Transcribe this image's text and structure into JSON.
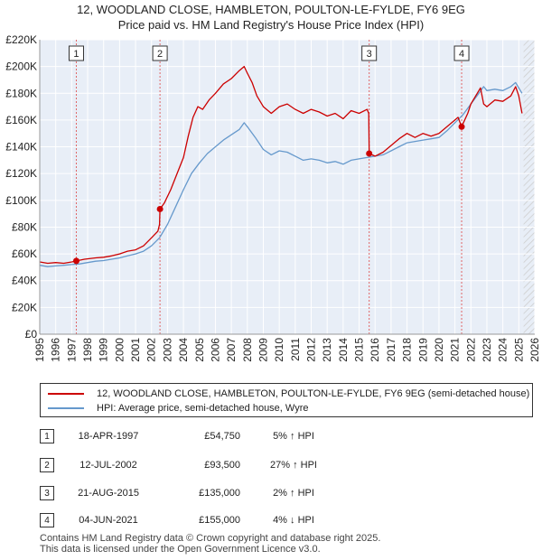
{
  "title_line1": "12, WOODLAND CLOSE, HAMBLETON, POULTON-LE-FYLDE, FY6 9EG",
  "title_line2": "Price paid vs. HM Land Registry's House Price Index (HPI)",
  "chart_data": {
    "type": "line",
    "xlim": [
      1995,
      2026
    ],
    "ylim": [
      0,
      220000
    ],
    "ytick_labels": [
      "£0",
      "£20K",
      "£40K",
      "£60K",
      "£80K",
      "£100K",
      "£120K",
      "£140K",
      "£160K",
      "£180K",
      "£200K",
      "£220K"
    ],
    "ytick_values": [
      0,
      20000,
      40000,
      60000,
      80000,
      100000,
      120000,
      140000,
      160000,
      180000,
      200000,
      220000
    ],
    "xtick_labels": [
      "1995",
      "1996",
      "1997",
      "1998",
      "1999",
      "2000",
      "2001",
      "2002",
      "2003",
      "2004",
      "2005",
      "2006",
      "2007",
      "2008",
      "2009",
      "2010",
      "2011",
      "2012",
      "2013",
      "2014",
      "2015",
      "2016",
      "2017",
      "2018",
      "2019",
      "2020",
      "2021",
      "2022",
      "2023",
      "2024",
      "2025",
      "2026"
    ],
    "series": [
      {
        "name": "12, WOODLAND CLOSE, HAMBLETON, POULTON-LE-FYLDE, FY6 9EG (semi-detached house)",
        "color": "#cc0000",
        "points": [
          [
            1995.0,
            54000
          ],
          [
            1995.5,
            53000
          ],
          [
            1996.0,
            53500
          ],
          [
            1996.5,
            53000
          ],
          [
            1997.0,
            54000
          ],
          [
            1997.29,
            54750
          ],
          [
            1997.8,
            56000
          ],
          [
            1998.5,
            57000
          ],
          [
            1999.0,
            57500
          ],
          [
            1999.5,
            58500
          ],
          [
            2000.0,
            60000
          ],
          [
            2000.5,
            62000
          ],
          [
            2001.0,
            63000
          ],
          [
            2001.5,
            66000
          ],
          [
            2002.0,
            72000
          ],
          [
            2002.4,
            77000
          ],
          [
            2002.5,
            82000
          ],
          [
            2002.53,
            93500
          ],
          [
            2002.8,
            98000
          ],
          [
            2003.2,
            108000
          ],
          [
            2003.6,
            120000
          ],
          [
            2004.0,
            132000
          ],
          [
            2004.3,
            148000
          ],
          [
            2004.6,
            162000
          ],
          [
            2004.9,
            170000
          ],
          [
            2005.2,
            168000
          ],
          [
            2005.6,
            175000
          ],
          [
            2006.0,
            180000
          ],
          [
            2006.5,
            187000
          ],
          [
            2007.0,
            191000
          ],
          [
            2007.5,
            197000
          ],
          [
            2007.8,
            200000
          ],
          [
            2008.0,
            195000
          ],
          [
            2008.3,
            188000
          ],
          [
            2008.6,
            178000
          ],
          [
            2009.0,
            170000
          ],
          [
            2009.5,
            165000
          ],
          [
            2010.0,
            170000
          ],
          [
            2010.5,
            172000
          ],
          [
            2011.0,
            168000
          ],
          [
            2011.5,
            165000
          ],
          [
            2012.0,
            168000
          ],
          [
            2012.5,
            166000
          ],
          [
            2013.0,
            163000
          ],
          [
            2013.5,
            165000
          ],
          [
            2014.0,
            161000
          ],
          [
            2014.5,
            167000
          ],
          [
            2015.0,
            165000
          ],
          [
            2015.5,
            168000
          ],
          [
            2015.6,
            165000
          ],
          [
            2015.63,
            135000
          ],
          [
            2016.0,
            133000
          ],
          [
            2016.5,
            136000
          ],
          [
            2017.0,
            141000
          ],
          [
            2017.5,
            146000
          ],
          [
            2018.0,
            150000
          ],
          [
            2018.5,
            147000
          ],
          [
            2019.0,
            150000
          ],
          [
            2019.5,
            148000
          ],
          [
            2020.0,
            150000
          ],
          [
            2020.5,
            155000
          ],
          [
            2020.9,
            159000
          ],
          [
            2021.2,
            162000
          ],
          [
            2021.42,
            155000
          ],
          [
            2021.8,
            165000
          ],
          [
            2022.0,
            172000
          ],
          [
            2022.3,
            178000
          ],
          [
            2022.6,
            184000
          ],
          [
            2022.8,
            172000
          ],
          [
            2023.0,
            170000
          ],
          [
            2023.5,
            175000
          ],
          [
            2024.0,
            174000
          ],
          [
            2024.5,
            178000
          ],
          [
            2024.8,
            185000
          ],
          [
            2025.0,
            178000
          ],
          [
            2025.2,
            165000
          ]
        ]
      },
      {
        "name": "HPI: Average price, semi-detached house, Wyre",
        "color": "#6699cc",
        "points": [
          [
            1995.0,
            51500
          ],
          [
            1995.5,
            50500
          ],
          [
            1996.0,
            51000
          ],
          [
            1996.5,
            51500
          ],
          [
            1997.0,
            52000
          ],
          [
            1997.5,
            52500
          ],
          [
            1998.0,
            53500
          ],
          [
            1998.5,
            54500
          ],
          [
            1999.0,
            55000
          ],
          [
            1999.5,
            56000
          ],
          [
            2000.0,
            57000
          ],
          [
            2000.5,
            58500
          ],
          [
            2001.0,
            60000
          ],
          [
            2001.5,
            62000
          ],
          [
            2002.0,
            66000
          ],
          [
            2002.5,
            72000
          ],
          [
            2003.0,
            82000
          ],
          [
            2003.5,
            95000
          ],
          [
            2004.0,
            108000
          ],
          [
            2004.5,
            120000
          ],
          [
            2005.0,
            128000
          ],
          [
            2005.5,
            135000
          ],
          [
            2006.0,
            140000
          ],
          [
            2006.5,
            145000
          ],
          [
            2007.0,
            149000
          ],
          [
            2007.5,
            153000
          ],
          [
            2007.8,
            158000
          ],
          [
            2008.0,
            155000
          ],
          [
            2008.5,
            147000
          ],
          [
            2009.0,
            138000
          ],
          [
            2009.5,
            134000
          ],
          [
            2010.0,
            137000
          ],
          [
            2010.5,
            136000
          ],
          [
            2011.0,
            133000
          ],
          [
            2011.5,
            130000
          ],
          [
            2012.0,
            131000
          ],
          [
            2012.5,
            130000
          ],
          [
            2013.0,
            128000
          ],
          [
            2013.5,
            129000
          ],
          [
            2014.0,
            127000
          ],
          [
            2014.5,
            130000
          ],
          [
            2015.0,
            131000
          ],
          [
            2015.5,
            132000
          ],
          [
            2016.0,
            133000
          ],
          [
            2016.5,
            134000
          ],
          [
            2017.0,
            137000
          ],
          [
            2017.5,
            140000
          ],
          [
            2018.0,
            143000
          ],
          [
            2018.5,
            144000
          ],
          [
            2019.0,
            145000
          ],
          [
            2019.5,
            146000
          ],
          [
            2020.0,
            147000
          ],
          [
            2020.5,
            152000
          ],
          [
            2021.0,
            158000
          ],
          [
            2021.5,
            164000
          ],
          [
            2022.0,
            172000
          ],
          [
            2022.5,
            180000
          ],
          [
            2022.8,
            185000
          ],
          [
            2023.0,
            182000
          ],
          [
            2023.5,
            183000
          ],
          [
            2024.0,
            182000
          ],
          [
            2024.5,
            185000
          ],
          [
            2024.8,
            188000
          ],
          [
            2025.0,
            184000
          ],
          [
            2025.2,
            180000
          ]
        ]
      }
    ],
    "sales": [
      {
        "label": "1",
        "x": 1997.29,
        "price": 54750
      },
      {
        "label": "2",
        "x": 2002.53,
        "price": 93500
      },
      {
        "label": "3",
        "x": 2015.63,
        "price": 135000
      },
      {
        "label": "4",
        "x": 2021.42,
        "price": 155000
      }
    ]
  },
  "legend": {
    "property_label": "12, WOODLAND CLOSE, HAMBLETON, POULTON-LE-FYLDE, FY6 9EG (semi-detached house)",
    "hpi_label": "HPI: Average price, semi-detached house, Wyre"
  },
  "transactions": [
    {
      "num": "1",
      "date": "18-APR-1997",
      "price": "£54,750",
      "hpi": "5% ↑ HPI"
    },
    {
      "num": "2",
      "date": "12-JUL-2002",
      "price": "£93,500",
      "hpi": "27% ↑ HPI"
    },
    {
      "num": "3",
      "date": "21-AUG-2015",
      "price": "£135,000",
      "hpi": "2% ↑ HPI"
    },
    {
      "num": "4",
      "date": "04-JUN-2021",
      "price": "£155,000",
      "hpi": "4% ↓ HPI"
    }
  ],
  "footer_line1": "Contains HM Land Registry data © Crown copyright and database right 2025.",
  "footer_line2": "This data is licensed under the Open Government Licence v3.0.",
  "colors": {
    "property": "#cc0000",
    "hpi": "#6699cc",
    "plot_bg": "#e8eef7",
    "future_hatch": "#cccccc"
  }
}
